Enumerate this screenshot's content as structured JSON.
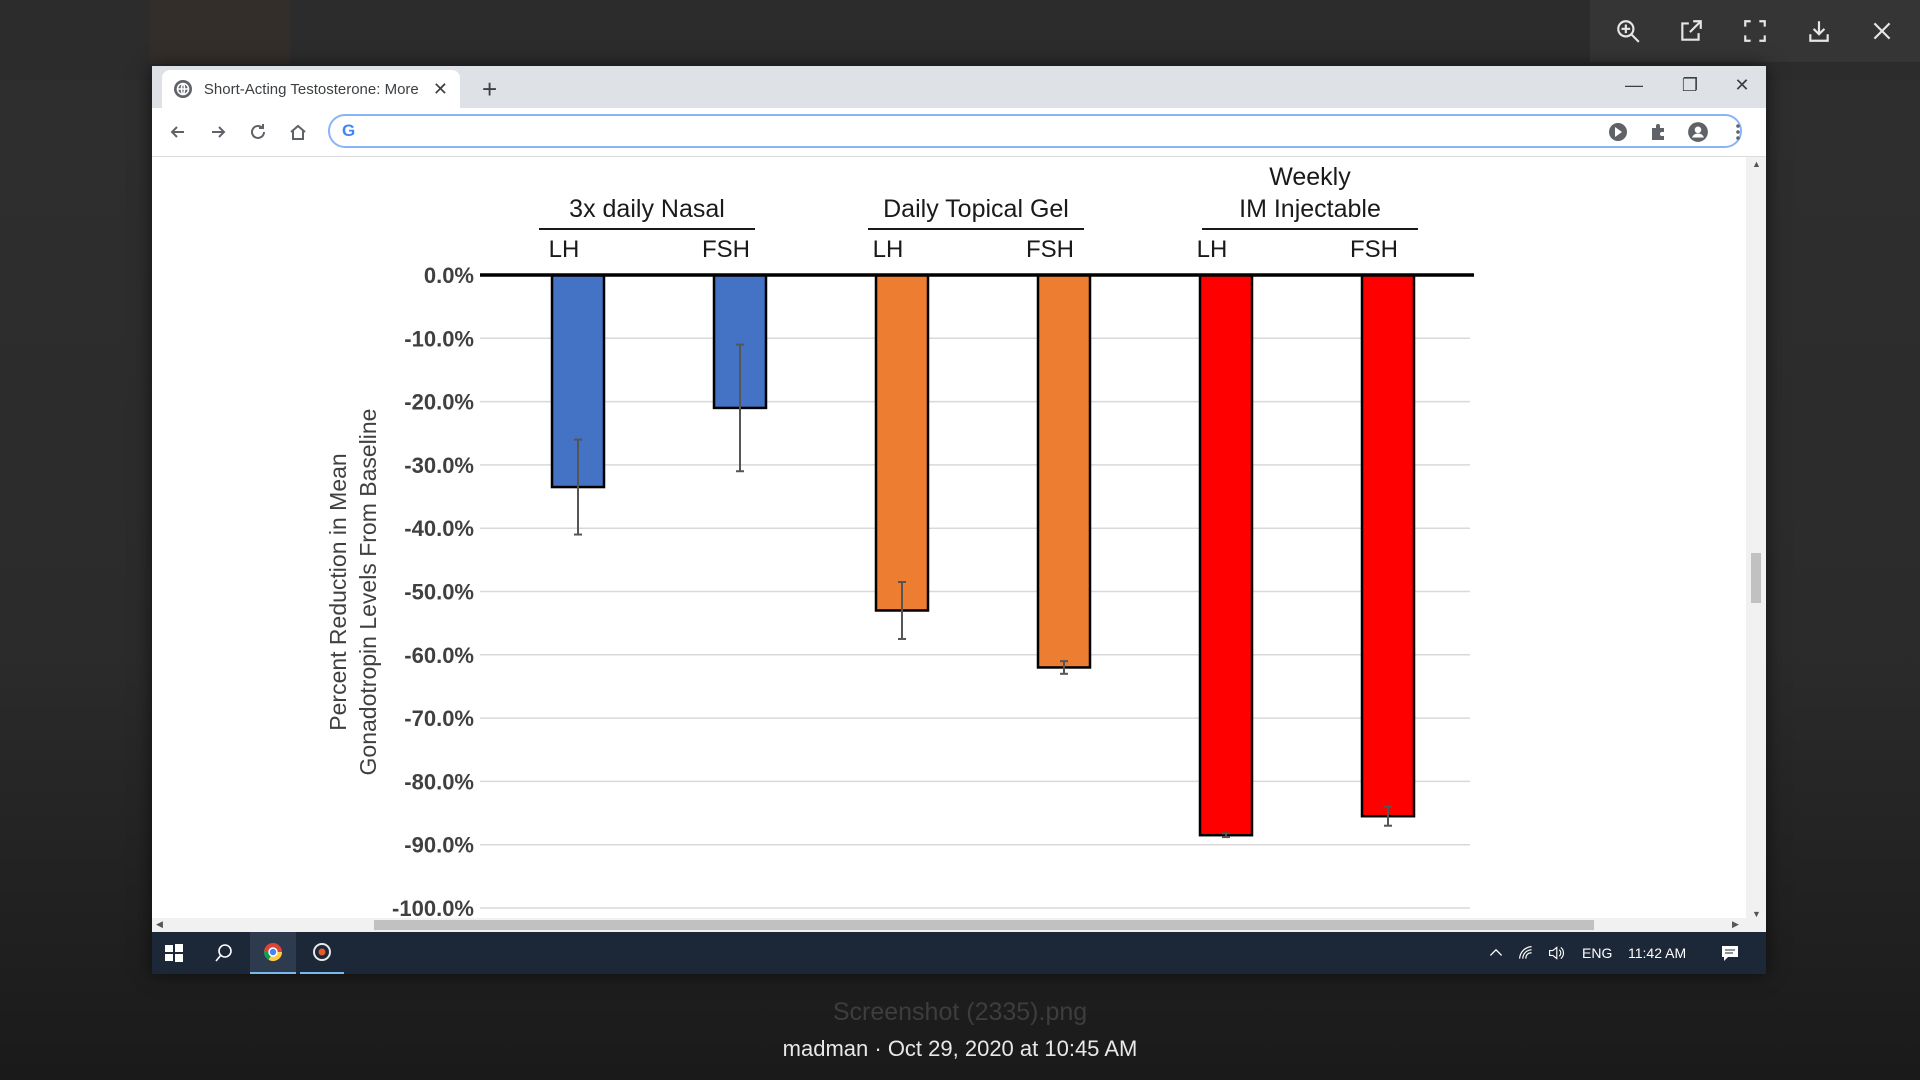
{
  "viewer": {
    "filename": "Screenshot (2335).png",
    "caption": "madman · Oct 29, 2020 at 10:45 AM",
    "tools": [
      "zoom-in-icon",
      "open-external-icon",
      "fullscreen-icon",
      "download-icon",
      "close-icon"
    ]
  },
  "browser": {
    "tab_title": "Short-Acting Testosterone: More",
    "newtab_label": "+",
    "omnibox_logo": "G"
  },
  "taskbar": {
    "language": "ENG",
    "time": "11:42 AM"
  },
  "chart_data": {
    "type": "bar",
    "title": "",
    "ylabel_line1": "Percent Reduction in Mean",
    "ylabel_line2": "Gonadotropin Levels From Baseline",
    "ylim": [
      -100,
      0
    ],
    "yticks": [
      "0.0%",
      "-10.0%",
      "-20.0%",
      "-30.0%",
      "-40.0%",
      "-50.0%",
      "-60.0%",
      "-70.0%",
      "-80.0%",
      "-90.0%",
      "-100.0%"
    ],
    "ytick_values": [
      0,
      -10,
      -20,
      -30,
      -40,
      -50,
      -60,
      -70,
      -80,
      -90,
      -100
    ],
    "groups": [
      {
        "label_lines": [
          "3x daily Nasal"
        ],
        "color": "#4472c4"
      },
      {
        "label_lines": [
          "Daily Topical Gel"
        ],
        "color": "#ed7d31"
      },
      {
        "label_lines": [
          "Weekly",
          "IM Injectable"
        ],
        "color": "#ff0000"
      }
    ],
    "categories": [
      "LH",
      "FSH",
      "LH",
      "FSH",
      "LH",
      "FSH"
    ],
    "values": [
      -33.5,
      -21.0,
      -53.0,
      -62.0,
      -88.5,
      -85.5
    ],
    "error": [
      7.5,
      10.0,
      4.5,
      1.0,
      0.3,
      1.5
    ],
    "group_index": [
      0,
      0,
      1,
      1,
      2,
      2
    ],
    "grid": true
  }
}
